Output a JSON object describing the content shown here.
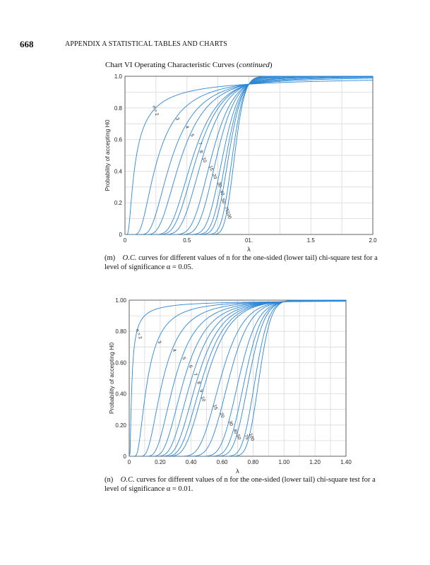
{
  "page": {
    "number": "668",
    "header": "APPENDIX A   STATISTICAL TABLES AND CHARTS",
    "chart_title_prefix": "Chart VI   Operating Characteristic Curves (",
    "chart_title_italic": "continued",
    "chart_title_suffix": ")"
  },
  "captions": [
    {
      "tag": "(m)",
      "italic": "O.C.",
      "text": " curves for different values of n for the one-sided (lower tail) chi-square test for a level of significance α = 0.05."
    },
    {
      "tag": "(n)",
      "italic": "O.C.",
      "text": " curves for different values of n for the one-sided (lower tail) chi-square test for a level of significance α = 0.01."
    }
  ],
  "colors": {
    "curve": "#2d87d6",
    "grid": "#d9d9d9",
    "axis": "#555555"
  },
  "chart_data": [
    {
      "type": "line",
      "xlabel": "λ",
      "ylabel": "Probability of accepting H0",
      "xlim": [
        0,
        2.0
      ],
      "ylim": [
        0,
        1.0
      ],
      "x_ticks": [
        "0",
        "0.5",
        "01.",
        "1.5",
        "2.0"
      ],
      "y_ticks": [
        "0",
        "0.2",
        "0.4",
        "0.6",
        "0.8",
        "1.0"
      ],
      "grid": true,
      "alpha": 0.05,
      "series": [
        {
          "name": "n = 2",
          "n": 2
        },
        {
          "name": "3",
          "n": 3
        },
        {
          "name": "4",
          "n": 4
        },
        {
          "name": "5",
          "n": 5
        },
        {
          "name": "7",
          "n": 7
        },
        {
          "name": "8",
          "n": 8
        },
        {
          "name": "10",
          "n": 10
        },
        {
          "name": "15",
          "n": 15
        },
        {
          "name": "20",
          "n": 20
        },
        {
          "name": "30",
          "n": 30
        },
        {
          "name": "40",
          "n": 40
        },
        {
          "name": "50",
          "n": 50
        },
        {
          "name": "75",
          "n": 75
        },
        {
          "name": "100",
          "n": 100
        }
      ]
    },
    {
      "type": "line",
      "xlabel": "λ",
      "ylabel": "Probability of accepting H0",
      "xlim": [
        0,
        1.4
      ],
      "ylim": [
        0,
        1.0
      ],
      "x_ticks": [
        "0",
        "0.20",
        "0.40",
        "0.60",
        "0.80",
        "1.00",
        "1.20",
        "1.40"
      ],
      "y_ticks": [
        "0",
        "0.20",
        "0.40",
        "0.60",
        "0.80",
        "1.00"
      ],
      "grid": true,
      "alpha": 0.01,
      "series": [
        {
          "name": "n = 2",
          "n": 2
        },
        {
          "name": "3",
          "n": 3
        },
        {
          "name": "4",
          "n": 4
        },
        {
          "name": "5",
          "n": 5
        },
        {
          "name": "6",
          "n": 6
        },
        {
          "name": "7",
          "n": 7
        },
        {
          "name": "8",
          "n": 8
        },
        {
          "name": "9",
          "n": 9
        },
        {
          "name": "10",
          "n": 10
        },
        {
          "name": "15",
          "n": 15
        },
        {
          "name": "20",
          "n": 20
        },
        {
          "name": "30",
          "n": 30
        },
        {
          "name": "40",
          "n": 40
        },
        {
          "name": "50",
          "n": 50
        },
        {
          "name": "75",
          "n": 75
        },
        {
          "name": "100",
          "n": 100
        }
      ]
    }
  ]
}
